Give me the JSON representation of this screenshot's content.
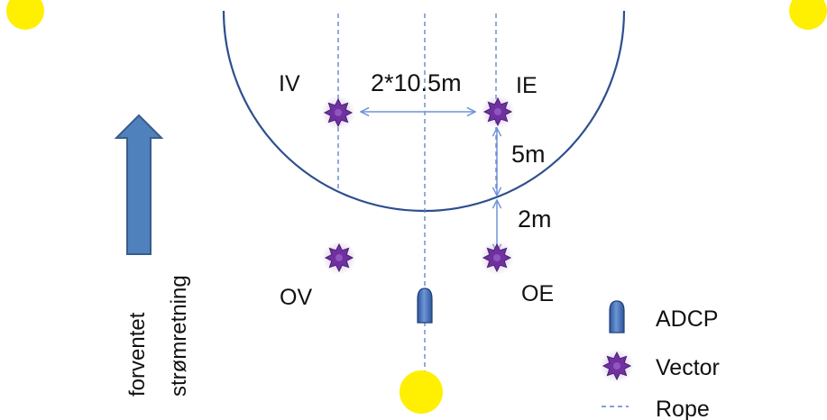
{
  "colors": {
    "accent_blue": "#4F81BD",
    "arrow_blue": "#6F93D6",
    "rope_blue": "#5A80C0",
    "vector_purple": "#7030A0",
    "vector_glow": "#B8A0CC",
    "buoy_yellow": "#FFEF00",
    "cage_outline": "#2F4F8F",
    "text": "#111111"
  },
  "stations": {
    "iv": "IV",
    "ie": "IE",
    "ov": "OV",
    "oe": "OE"
  },
  "dimensions": {
    "width_label": "2*10.5m",
    "inner_label": "5m",
    "outer_label": "2m"
  },
  "current": {
    "line1": "forventet",
    "line2": "strømretning"
  },
  "legend": [
    {
      "icon": "adcp-icon",
      "label": "ADCP"
    },
    {
      "icon": "vector-icon",
      "label": "Vector"
    },
    {
      "icon": "rope-icon",
      "label": "Rope"
    }
  ]
}
